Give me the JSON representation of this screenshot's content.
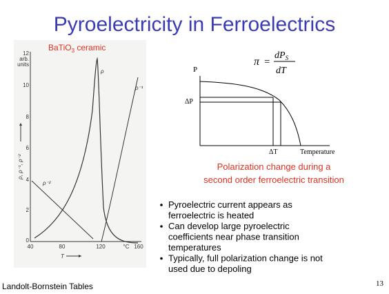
{
  "title": "Pyroelectricity in Ferroelectrics",
  "figure": {
    "label": "BaTiO",
    "label_sub": "3",
    "label_tail": " ceramic",
    "y_ticks": [
      "12",
      "10",
      "8",
      "6",
      "4",
      "2",
      "0"
    ],
    "y_unit": [
      "arb.",
      "units"
    ],
    "x_ticks": [
      "40",
      "80",
      "120",
      "160"
    ],
    "x_unit": "°C",
    "x_label": "T",
    "y_label": "ρ, ρ⁻¹, ρ⁻²",
    "curve_labels": [
      "ρ",
      "ρ⁻¹",
      "ρ⁻²"
    ]
  },
  "diagram": {
    "formula": {
      "lhs": "π",
      "eq": "=",
      "num": "dP",
      "num_sub": "S",
      "den": "dT"
    },
    "y_label": "P",
    "delta_p": "ΔP",
    "delta_t": "ΔT",
    "x_label": "Temperature",
    "caption": [
      "Polarization change during a",
      "second order ferroelectric transition"
    ]
  },
  "bullets": [
    [
      "Pyroelectric current appears as",
      "ferroelectric is heated"
    ],
    [
      "Can develop large pyroelectric",
      "coefficients near phase transition",
      "temperatures"
    ],
    [
      "Typically, full polarization change is not",
      "used due to depoling"
    ]
  ],
  "footer": {
    "source": "Landolt-Bornstein Tables",
    "page": "13"
  }
}
